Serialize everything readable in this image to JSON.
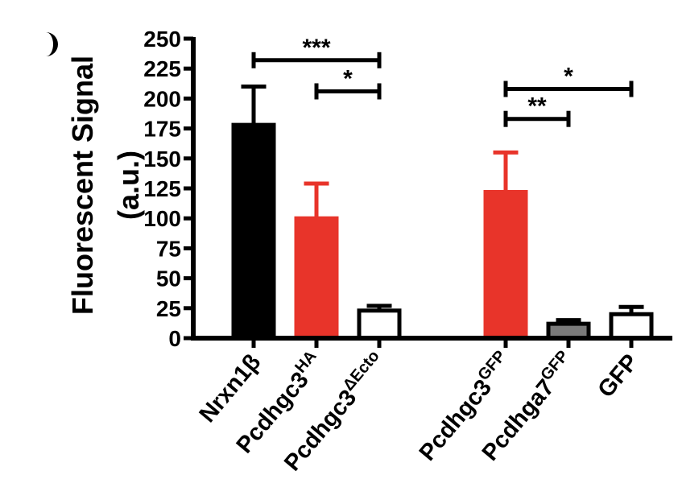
{
  "chart_data": {
    "type": "bar",
    "ylabel_line1": "Fluorescent Signal",
    "ylabel_line2": "(a.u.)",
    "ylim": [
      0,
      250
    ],
    "yticks": [
      "0",
      "25",
      "50",
      "75",
      "100",
      "125",
      "150",
      "175",
      "200",
      "225",
      "250"
    ],
    "bars": [
      {
        "label": "Nrxn1β",
        "sup": "",
        "value": 178,
        "error": 32,
        "color": "#000000"
      },
      {
        "label": "Pcdhgc3",
        "sup": "HA",
        "value": 100,
        "error": 29,
        "color": "#e8342a"
      },
      {
        "label": "Pcdhgc3",
        "sup": "ΔEcto",
        "value": 23,
        "error": 4,
        "color": "#ffffff"
      },
      {
        "label": "Pcdhgc3",
        "sup": "GFP",
        "value": 122,
        "error": 33,
        "color": "#e8342a"
      },
      {
        "label": "Pcdhga7",
        "sup": "GFP",
        "value": 12,
        "error": 3,
        "color": "#7a7a7a"
      },
      {
        "label": "GFP",
        "sup": "",
        "value": 20,
        "error": 6,
        "color": "#ffffff"
      }
    ],
    "significance": [
      {
        "from": 0,
        "to": 2,
        "level": 232,
        "label": "***"
      },
      {
        "from": 1,
        "to": 2,
        "level": 206,
        "label": "*"
      },
      {
        "from": 3,
        "to": 5,
        "level": 208,
        "label": "*"
      },
      {
        "from": 3,
        "to": 4,
        "level": 183,
        "label": "**"
      }
    ],
    "grid": false,
    "legend": "none"
  }
}
